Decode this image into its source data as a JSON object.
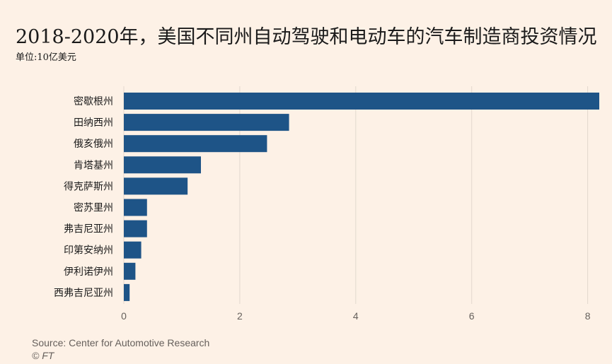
{
  "title": "2018-2020年，美国不同州自动驾驶和电动车的汽车制造商投资情况",
  "subtitle": "单位:10亿美元",
  "source": "Source: Center for Automotive Research",
  "credit": "© FT",
  "colors": {
    "background": "#fdf1e6",
    "bar": "#1e5487",
    "grid": "#e2d8ce",
    "tick_text": "#66605c",
    "label_text": "#1a1a1a"
  },
  "chart_data": {
    "type": "bar",
    "orientation": "horizontal",
    "title": "2018-2020年，美国不同州自动驾驶和电动车的汽车制造商投资情况",
    "subtitle": "单位:10亿美元",
    "categories": [
      "密歇根州",
      "田纳西州",
      "俄亥俄州",
      "肯塔基州",
      "得克萨斯州",
      "密苏里州",
      "弗吉尼亚州",
      "印第安纳州",
      "伊利诺伊州",
      "西弗吉尼亚州"
    ],
    "values": [
      8.2,
      2.85,
      2.47,
      1.33,
      1.1,
      0.4,
      0.4,
      0.3,
      0.2,
      0.1
    ],
    "xlim": [
      0,
      8.2
    ],
    "xticks": [
      0,
      2,
      4,
      6,
      8
    ],
    "xlabel": "",
    "ylabel": "",
    "grid": true,
    "legend": "none"
  }
}
